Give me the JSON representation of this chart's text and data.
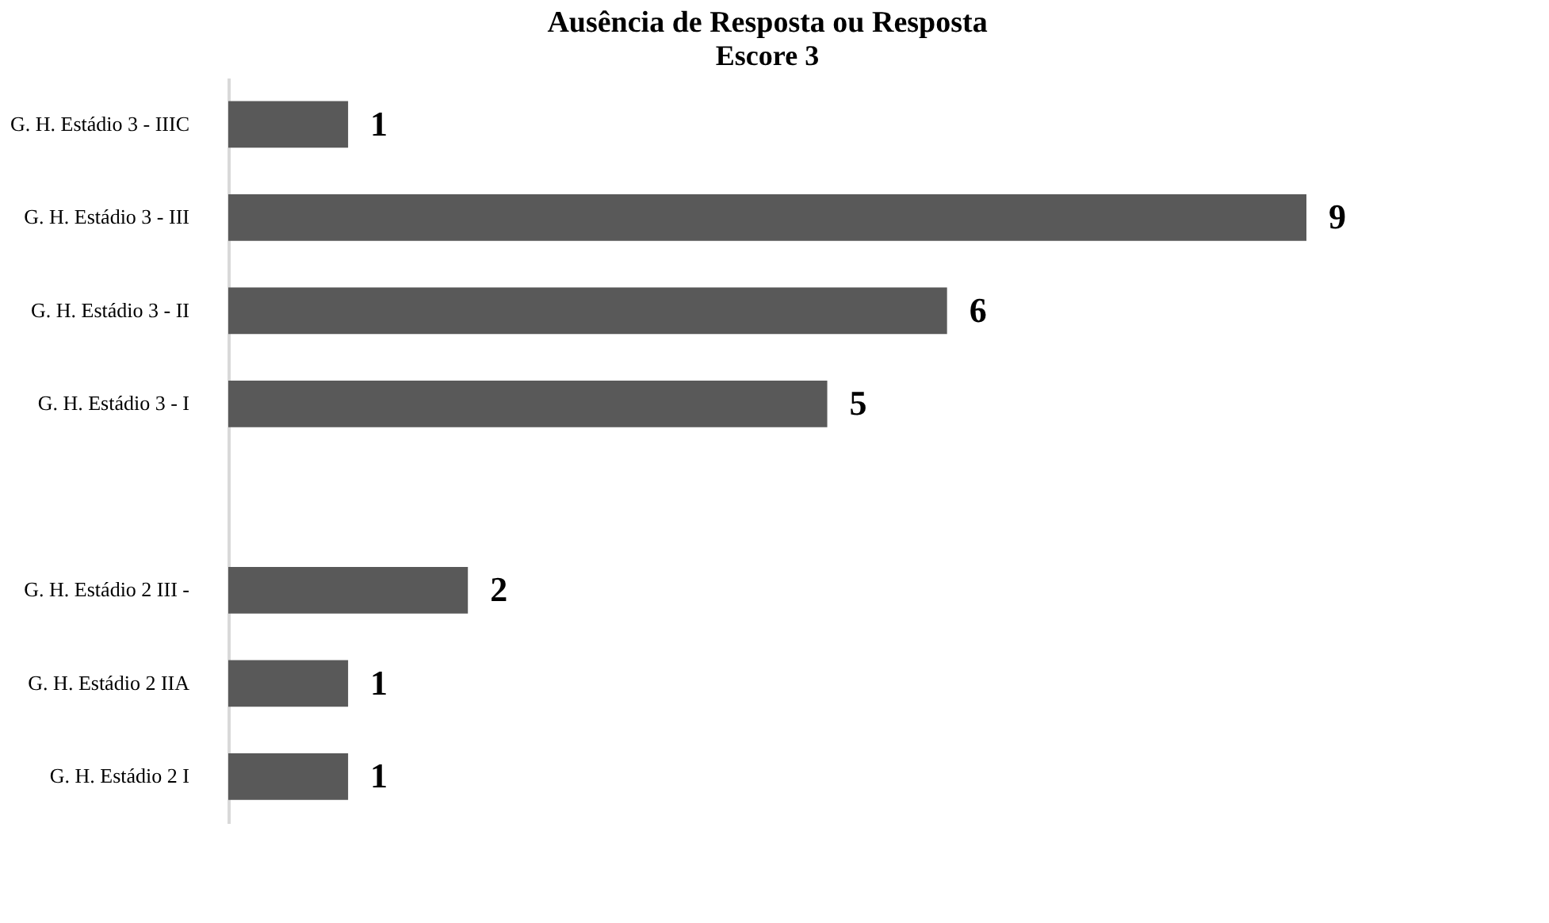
{
  "chart_data": {
    "type": "bar",
    "orientation": "horizontal",
    "title": "Ausência de Resposta ou Resposta",
    "subtitle": "Escore 3",
    "categories": [
      "G. H. Estádio 3 - IIIC",
      "G. H. Estádio 3 - III",
      "G. H. Estádio 3 - II",
      "G. H. Estádio 3 - I",
      null,
      "G. H. Estádio 2 III -",
      "G. H. Estádio 2 IIA",
      "G. H. Estádio 2 I"
    ],
    "values": [
      1,
      9,
      6,
      5,
      null,
      2,
      1,
      1
    ],
    "color": "#595959",
    "data_labels": true,
    "grid": false
  }
}
